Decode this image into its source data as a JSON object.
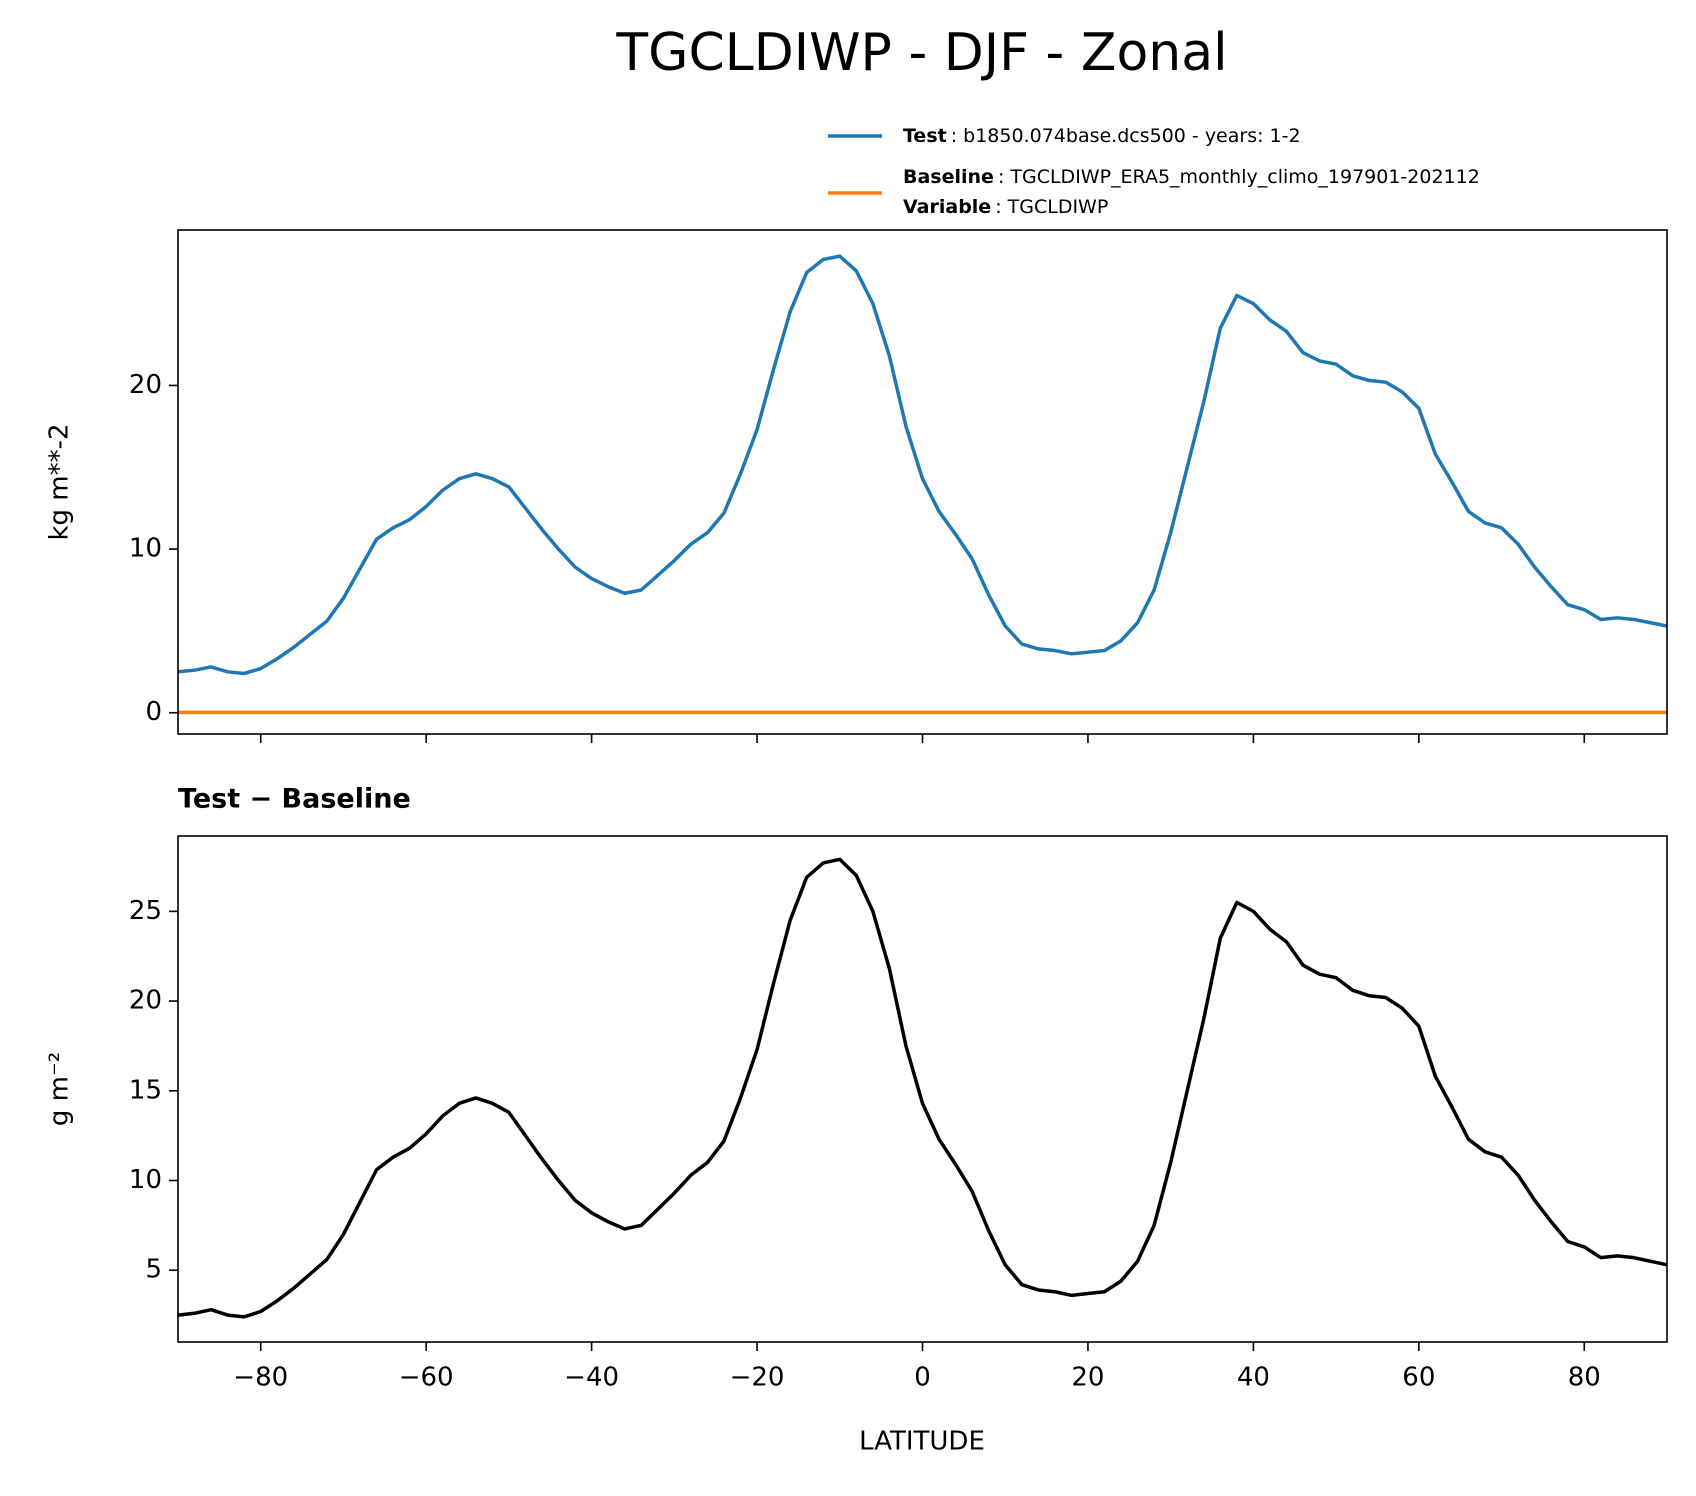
{
  "chart_data": [
    {
      "type": "line",
      "title": "TGCLDIWP - DJF - Zonal",
      "ylabel": "kg m**-2",
      "x": [
        -90,
        -88,
        -86,
        -84,
        -82,
        -80,
        -78,
        -76,
        -74,
        -72,
        -70,
        -68,
        -66,
        -64,
        -62,
        -60,
        -58,
        -56,
        -54,
        -52,
        -50,
        -48,
        -46,
        -44,
        -42,
        -40,
        -38,
        -36,
        -34,
        -32,
        -30,
        -28,
        -26,
        -24,
        -22,
        -20,
        -18,
        -16,
        -14,
        -12,
        -10,
        -8,
        -6,
        -4,
        -2,
        0,
        2,
        4,
        6,
        8,
        10,
        12,
        14,
        16,
        18,
        20,
        22,
        24,
        26,
        28,
        30,
        32,
        34,
        36,
        38,
        40,
        42,
        44,
        46,
        48,
        50,
        52,
        54,
        56,
        58,
        60,
        62,
        64,
        66,
        68,
        70,
        72,
        74,
        76,
        78,
        80,
        82,
        84,
        86,
        88,
        90
      ],
      "series": [
        {
          "name": "Test",
          "label": ": b1850.074base.dcs500 - years: 1-2",
          "color": "#1f77b4",
          "values": [
            2.5,
            2.6,
            2.8,
            2.5,
            2.4,
            2.7,
            3.3,
            4.0,
            4.8,
            5.6,
            7.0,
            8.8,
            10.6,
            11.3,
            11.8,
            12.6,
            13.6,
            14.3,
            14.6,
            14.3,
            13.8,
            12.5,
            11.2,
            10.0,
            8.9,
            8.2,
            7.7,
            7.3,
            7.5,
            8.4,
            9.3,
            10.3,
            11.0,
            12.2,
            14.6,
            17.3,
            21.0,
            24.5,
            26.9,
            27.7,
            27.9,
            27.0,
            25.0,
            21.8,
            17.5,
            14.3,
            12.3,
            10.9,
            9.4,
            7.2,
            5.3,
            4.2,
            3.9,
            3.8,
            3.6,
            3.7,
            3.8,
            4.4,
            5.5,
            7.5,
            11.0,
            15.0,
            19.0,
            23.5,
            25.5,
            25.0,
            24.0,
            23.3,
            22.0,
            21.5,
            21.3,
            20.6,
            20.3,
            20.2,
            19.6,
            18.6,
            15.8,
            14.1,
            12.3,
            11.6,
            11.3,
            10.3,
            8.9,
            7.7,
            6.6,
            6.3,
            5.7,
            5.8,
            5.7,
            5.5,
            5.3
          ]
        },
        {
          "name": "Baseline",
          "label": ": TGCLDIWP_ERA5_monthly_climo_197901-202112",
          "color": "#ff7f0e",
          "values": [
            0.02,
            0.02,
            0.02,
            0.02,
            0.02,
            0.02,
            0.02,
            0.02,
            0.02,
            0.02,
            0.02,
            0.02,
            0.02,
            0.02,
            0.02,
            0.02,
            0.02,
            0.02,
            0.02,
            0.02,
            0.02,
            0.02,
            0.02,
            0.02,
            0.02,
            0.02,
            0.02,
            0.02,
            0.02,
            0.02,
            0.02,
            0.02,
            0.02,
            0.02,
            0.02,
            0.02,
            0.02,
            0.02,
            0.02,
            0.02,
            0.02,
            0.02,
            0.02,
            0.02,
            0.02,
            0.02,
            0.02,
            0.02,
            0.02,
            0.02,
            0.02,
            0.02,
            0.02,
            0.02,
            0.02,
            0.02,
            0.02,
            0.02,
            0.02,
            0.02,
            0.02,
            0.02,
            0.02,
            0.02,
            0.02,
            0.02,
            0.02,
            0.02,
            0.02,
            0.02,
            0.02,
            0.02,
            0.02,
            0.02,
            0.02,
            0.02,
            0.02,
            0.02,
            0.02,
            0.02,
            0.02,
            0.02,
            0.02,
            0.02,
            0.02,
            0.02,
            0.02,
            0.02,
            0.02,
            0.02,
            0.02
          ]
        }
      ],
      "variable": {
        "name": "Variable",
        "label": ": TGCLDIWP"
      },
      "xlim": [
        -90,
        90
      ],
      "xticks": [
        -80,
        -60,
        -40,
        -20,
        0,
        20,
        40,
        60,
        80
      ],
      "ylim": [
        -1.3,
        29.5
      ],
      "yticks": [
        0,
        10,
        20
      ]
    },
    {
      "type": "line",
      "title": "Test − Baseline",
      "xlabel": "LATITUDE",
      "ylabel": "g m⁻²",
      "x": [
        -90,
        -88,
        -86,
        -84,
        -82,
        -80,
        -78,
        -76,
        -74,
        -72,
        -70,
        -68,
        -66,
        -64,
        -62,
        -60,
        -58,
        -56,
        -54,
        -52,
        -50,
        -48,
        -46,
        -44,
        -42,
        -40,
        -38,
        -36,
        -34,
        -32,
        -30,
        -28,
        -26,
        -24,
        -22,
        -20,
        -18,
        -16,
        -14,
        -12,
        -10,
        -8,
        -6,
        -4,
        -2,
        0,
        2,
        4,
        6,
        8,
        10,
        12,
        14,
        16,
        18,
        20,
        22,
        24,
        26,
        28,
        30,
        32,
        34,
        36,
        38,
        40,
        42,
        44,
        46,
        48,
        50,
        52,
        54,
        56,
        58,
        60,
        62,
        64,
        66,
        68,
        70,
        72,
        74,
        76,
        78,
        80,
        82,
        84,
        86,
        88,
        90
      ],
      "series": [
        {
          "color": "#000000",
          "values": [
            2.5,
            2.6,
            2.8,
            2.5,
            2.4,
            2.7,
            3.3,
            4.0,
            4.8,
            5.6,
            7.0,
            8.8,
            10.6,
            11.3,
            11.8,
            12.6,
            13.6,
            14.3,
            14.6,
            14.3,
            13.8,
            12.5,
            11.2,
            10.0,
            8.9,
            8.2,
            7.7,
            7.3,
            7.5,
            8.4,
            9.3,
            10.3,
            11.0,
            12.2,
            14.6,
            17.3,
            21.0,
            24.5,
            26.9,
            27.7,
            27.9,
            27.0,
            25.0,
            21.8,
            17.5,
            14.3,
            12.3,
            10.9,
            9.4,
            7.2,
            5.3,
            4.2,
            3.9,
            3.8,
            3.6,
            3.7,
            3.8,
            4.4,
            5.5,
            7.5,
            11.0,
            15.0,
            19.0,
            23.5,
            25.5,
            25.0,
            24.0,
            23.3,
            22.0,
            21.5,
            21.3,
            20.6,
            20.3,
            20.2,
            19.6,
            18.6,
            15.8,
            14.1,
            12.3,
            11.6,
            11.3,
            10.3,
            8.9,
            7.7,
            6.6,
            6.3,
            5.7,
            5.8,
            5.7,
            5.5,
            5.3
          ]
        }
      ],
      "xlim": [
        -90,
        90
      ],
      "xticks": [
        {
          "value": -80,
          "label": "−80"
        },
        {
          "value": -60,
          "label": "−60"
        },
        {
          "value": -40,
          "label": "−40"
        },
        {
          "value": -20,
          "label": "−20"
        },
        0,
        20,
        40,
        60,
        80
      ],
      "ylim": [
        1.0,
        29.2
      ],
      "yticks": [
        5,
        10,
        15,
        20,
        25
      ]
    }
  ]
}
